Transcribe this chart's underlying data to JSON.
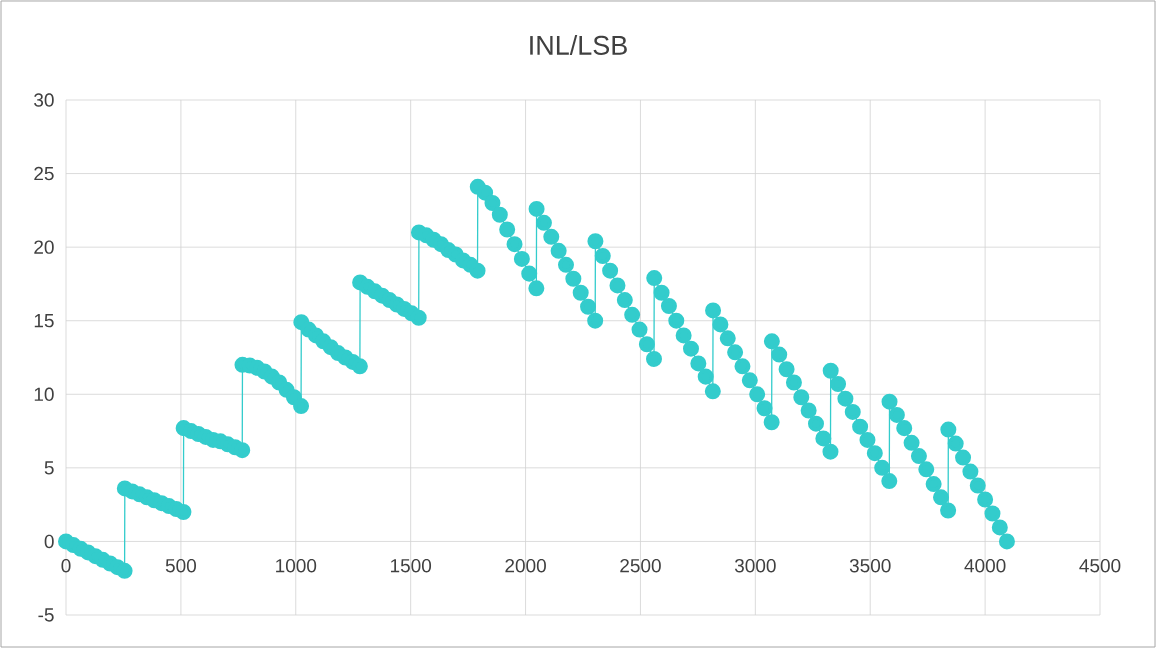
{
  "chart_data": {
    "type": "line",
    "title": "INL/LSB",
    "x": [
      0,
      32,
      64,
      96,
      128,
      160,
      192,
      224,
      255,
      256,
      288,
      320,
      352,
      384,
      416,
      448,
      480,
      511,
      512,
      544,
      576,
      608,
      640,
      672,
      704,
      736,
      767,
      768,
      800,
      832,
      864,
      896,
      928,
      960,
      992,
      1023,
      1024,
      1056,
      1088,
      1120,
      1152,
      1184,
      1216,
      1248,
      1279,
      1280,
      1312,
      1344,
      1376,
      1408,
      1440,
      1472,
      1504,
      1535,
      1536,
      1568,
      1600,
      1632,
      1664,
      1696,
      1728,
      1760,
      1791,
      1792,
      1824,
      1856,
      1888,
      1920,
      1952,
      1984,
      2016,
      2047,
      2048,
      2080,
      2112,
      2144,
      2176,
      2208,
      2240,
      2272,
      2303,
      2304,
      2336,
      2368,
      2400,
      2432,
      2464,
      2496,
      2528,
      2559,
      2560,
      2592,
      2624,
      2656,
      2688,
      2720,
      2752,
      2784,
      2815,
      2816,
      2848,
      2880,
      2912,
      2944,
      2976,
      3008,
      3040,
      3071,
      3072,
      3104,
      3136,
      3168,
      3200,
      3232,
      3264,
      3296,
      3327,
      3328,
      3360,
      3392,
      3424,
      3456,
      3488,
      3520,
      3552,
      3583,
      3584,
      3616,
      3648,
      3680,
      3712,
      3744,
      3776,
      3808,
      3839,
      3840,
      3872,
      3904,
      3936,
      3968,
      4000,
      4032,
      4064,
      4095
    ],
    "values": [
      0,
      -0.25,
      -0.5,
      -0.75,
      -1,
      -1.25,
      -1.5,
      -1.75,
      -2,
      3.6,
      3.4,
      3.2,
      3.0,
      2.8,
      2.6,
      2.4,
      2.2,
      2.0,
      7.7,
      7.5,
      7.3,
      7.1,
      6.9,
      6.8,
      6.6,
      6.4,
      6.2,
      12.0,
      11.95,
      11.8,
      11.55,
      11.2,
      10.8,
      10.3,
      9.8,
      9.2,
      14.9,
      14.4,
      14.0,
      13.6,
      13.2,
      12.8,
      12.5,
      12.2,
      11.9,
      17.6,
      17.3,
      17.0,
      16.7,
      16.4,
      16.1,
      15.8,
      15.5,
      15.2,
      21.0,
      20.8,
      20.5,
      20.2,
      19.8,
      19.5,
      19.1,
      18.8,
      18.4,
      24.1,
      23.7,
      23.0,
      22.2,
      21.2,
      20.2,
      19.2,
      18.2,
      17.2,
      22.6,
      21.65,
      20.7,
      19.75,
      18.8,
      17.85,
      16.9,
      15.95,
      15.0,
      20.4,
      19.4,
      18.4,
      17.4,
      16.4,
      15.4,
      14.4,
      13.4,
      12.4,
      17.9,
      16.9,
      16.0,
      15.0,
      14.0,
      13.1,
      12.1,
      11.2,
      10.2,
      15.7,
      14.75,
      13.8,
      12.85,
      11.9,
      10.95,
      10.0,
      9.05,
      8.1,
      13.6,
      12.7,
      11.7,
      10.8,
      9.8,
      8.9,
      8.0,
      7.0,
      6.1,
      11.6,
      10.7,
      9.7,
      8.8,
      7.8,
      6.9,
      6.0,
      5.0,
      4.1,
      9.5,
      8.6,
      7.7,
      6.7,
      5.8,
      4.9,
      3.9,
      3.0,
      2.1,
      7.6,
      6.65,
      5.7,
      4.75,
      3.8,
      2.85,
      1.9,
      0.95,
      0.0
    ],
    "color": "#33cccc",
    "marker": "circle",
    "line_style": "solid",
    "grid": true,
    "xlim": [
      0,
      4500
    ],
    "xticks": [
      0,
      500,
      1000,
      1500,
      2000,
      2500,
      3000,
      3500,
      4000,
      4500
    ],
    "ylim": [
      -5,
      30
    ],
    "yticks": [
      -5,
      0,
      5,
      10,
      15,
      20,
      25,
      30
    ]
  }
}
